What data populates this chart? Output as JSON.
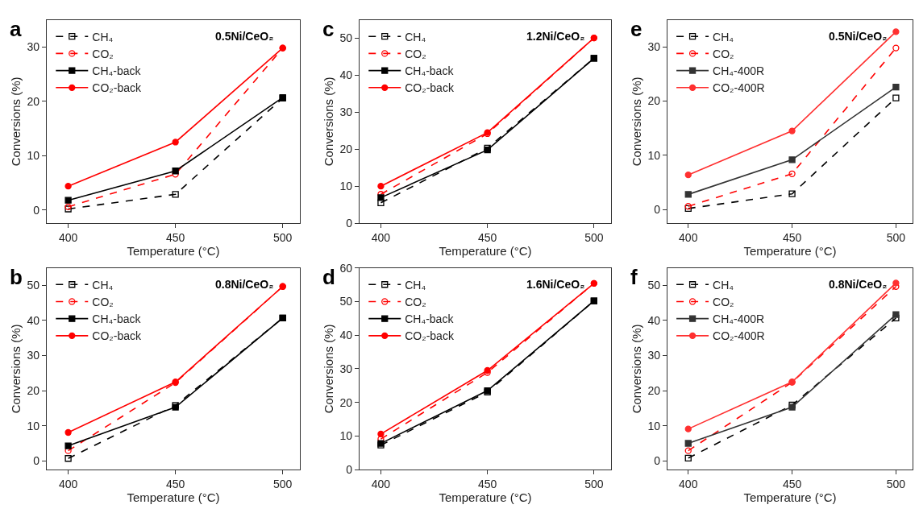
{
  "chart_data": [
    {
      "type": "line",
      "title": "a",
      "annotations": [
        "0.5Ni/CeO₂"
      ],
      "xlabel": "Temperature (°C)",
      "ylabel": "Conversions (%)",
      "x": [
        400,
        450,
        500
      ],
      "xlim": [
        390,
        508
      ],
      "xticks": [
        400,
        450,
        500
      ],
      "ylim": [
        -2.4,
        35
      ],
      "yticks": [
        0,
        10,
        20,
        30
      ],
      "legend": "top left",
      "series": [
        {
          "name": "CH₄",
          "color": "#000000",
          "marker": "square",
          "line_style": "dashed",
          "values": [
            0.2,
            2.9,
            20.6
          ]
        },
        {
          "name": "CO₂",
          "color": "#ff0000",
          "marker": "circle",
          "line_style": "dashed",
          "values": [
            0.6,
            6.6,
            29.8
          ]
        },
        {
          "name": "CH₄-back",
          "color": "#000000",
          "marker": "square",
          "line_style": "solid",
          "values": [
            1.8,
            7.2,
            20.7
          ]
        },
        {
          "name": "CO₂-back",
          "color": "#ff0000",
          "marker": "circle",
          "line_style": "solid",
          "values": [
            4.4,
            12.5,
            29.8
          ]
        }
      ]
    },
    {
      "type": "line",
      "title": "c",
      "annotations": [
        "1.2Ni/CeO₂"
      ],
      "xlabel": "Temperature (°C)",
      "ylabel": "Conversions (%)",
      "x": [
        400,
        450,
        500
      ],
      "xlim": [
        390,
        508
      ],
      "xticks": [
        400,
        450,
        500
      ],
      "ylim": [
        0,
        55
      ],
      "yticks": [
        0,
        10,
        20,
        30,
        40,
        50
      ],
      "legend": "top left",
      "series": [
        {
          "name": "CH₄",
          "color": "#000000",
          "marker": "square",
          "line_style": "dashed",
          "values": [
            5.5,
            20.3,
            44.6
          ]
        },
        {
          "name": "CO₂",
          "color": "#ff0000",
          "marker": "circle",
          "line_style": "dashed",
          "values": [
            7.8,
            24.2,
            50.1
          ]
        },
        {
          "name": "CH₄-back",
          "color": "#000000",
          "marker": "square",
          "line_style": "solid",
          "values": [
            6.9,
            19.8,
            44.6
          ]
        },
        {
          "name": "CO₂-back",
          "color": "#ff0000",
          "marker": "circle",
          "line_style": "solid",
          "values": [
            10.0,
            24.5,
            50.1
          ]
        }
      ]
    },
    {
      "type": "line",
      "title": "e",
      "annotations": [
        "0.5Ni/CeO₂"
      ],
      "xlabel": "Temperature (°C)",
      "ylabel": "Conversions (%)",
      "x": [
        400,
        450,
        500
      ],
      "xlim": [
        390,
        508
      ],
      "xticks": [
        400,
        450,
        500
      ],
      "ylim": [
        -2.5,
        35
      ],
      "yticks": [
        0,
        10,
        20,
        30
      ],
      "legend": "top left",
      "series": [
        {
          "name": "CH₄",
          "color": "#000000",
          "marker": "square",
          "line_style": "dashed",
          "values": [
            0.2,
            2.9,
            20.6
          ]
        },
        {
          "name": "CO₂",
          "color": "#ff0000",
          "marker": "circle",
          "line_style": "dashed",
          "values": [
            0.6,
            6.6,
            29.8
          ]
        },
        {
          "name": "CH₄-400R",
          "color": "#333333",
          "marker": "square",
          "line_style": "solid",
          "values": [
            2.8,
            9.2,
            22.6
          ]
        },
        {
          "name": "CO₂-400R",
          "color": "#ff3030",
          "marker": "circle",
          "line_style": "solid",
          "values": [
            6.4,
            14.5,
            32.8
          ]
        }
      ]
    },
    {
      "type": "line",
      "title": "b",
      "annotations": [
        "0.8Ni/CeO₂"
      ],
      "xlabel": "Temperature (°C)",
      "ylabel": "Conversions (%)",
      "x": [
        400,
        450,
        500
      ],
      "xlim": [
        390,
        508
      ],
      "xticks": [
        400,
        450,
        500
      ],
      "ylim": [
        -2.5,
        55
      ],
      "yticks": [
        0,
        10,
        20,
        30,
        40,
        50
      ],
      "legend": "top left",
      "series": [
        {
          "name": "CH₄",
          "color": "#000000",
          "marker": "square",
          "line_style": "dashed",
          "values": [
            0.7,
            15.8,
            40.7
          ]
        },
        {
          "name": "CO₂",
          "color": "#ff0000",
          "marker": "circle",
          "line_style": "dashed",
          "values": [
            2.9,
            22.3,
            49.7
          ]
        },
        {
          "name": "CH₄-back",
          "color": "#000000",
          "marker": "square",
          "line_style": "solid",
          "values": [
            4.3,
            15.3,
            40.7
          ]
        },
        {
          "name": "CO₂-back",
          "color": "#ff0000",
          "marker": "circle",
          "line_style": "solid",
          "values": [
            8.1,
            22.5,
            49.7
          ]
        }
      ]
    },
    {
      "type": "line",
      "title": "d",
      "annotations": [
        "1.6Ni/CeO₂"
      ],
      "xlabel": "Temperature (°C)",
      "ylabel": "Conversions (%)",
      "x": [
        400,
        450,
        500
      ],
      "xlim": [
        390,
        508
      ],
      "xticks": [
        400,
        450,
        500
      ],
      "ylim": [
        0,
        60
      ],
      "yticks": [
        0,
        10,
        20,
        30,
        40,
        50,
        60
      ],
      "legend": "top left",
      "series": [
        {
          "name": "CH₄",
          "color": "#000000",
          "marker": "square",
          "line_style": "dashed",
          "values": [
            7.3,
            23.1,
            50.2
          ]
        },
        {
          "name": "CO₂",
          "color": "#ff0000",
          "marker": "circle",
          "line_style": "dashed",
          "values": [
            9.1,
            28.9,
            55.4
          ]
        },
        {
          "name": "CH₄-back",
          "color": "#000000",
          "marker": "square",
          "line_style": "solid",
          "values": [
            7.8,
            23.5,
            50.2
          ]
        },
        {
          "name": "CO₂-back",
          "color": "#ff0000",
          "marker": "circle",
          "line_style": "solid",
          "values": [
            10.6,
            29.5,
            55.4
          ]
        }
      ]
    },
    {
      "type": "line",
      "title": "f",
      "annotations": [
        "0.8Ni/CeO₂"
      ],
      "xlabel": "Temperature (°C)",
      "ylabel": "Conversions (%)",
      "x": [
        400,
        450,
        500
      ],
      "xlim": [
        390,
        508
      ],
      "xticks": [
        400,
        450,
        500
      ],
      "ylim": [
        -2.5,
        55
      ],
      "yticks": [
        0,
        10,
        20,
        30,
        40,
        50
      ],
      "legend": "top left",
      "series": [
        {
          "name": "CH₄",
          "color": "#000000",
          "marker": "square",
          "line_style": "dashed",
          "values": [
            0.8,
            15.9,
            40.7
          ]
        },
        {
          "name": "CO₂",
          "color": "#ff0000",
          "marker": "circle",
          "line_style": "dashed",
          "values": [
            2.9,
            22.4,
            49.7
          ]
        },
        {
          "name": "CH₄-400R",
          "color": "#333333",
          "marker": "square",
          "line_style": "solid",
          "values": [
            5.0,
            15.3,
            41.7
          ]
        },
        {
          "name": "CO₂-400R",
          "color": "#ff3030",
          "marker": "circle",
          "line_style": "solid",
          "values": [
            9.1,
            22.5,
            50.7
          ]
        }
      ]
    }
  ]
}
